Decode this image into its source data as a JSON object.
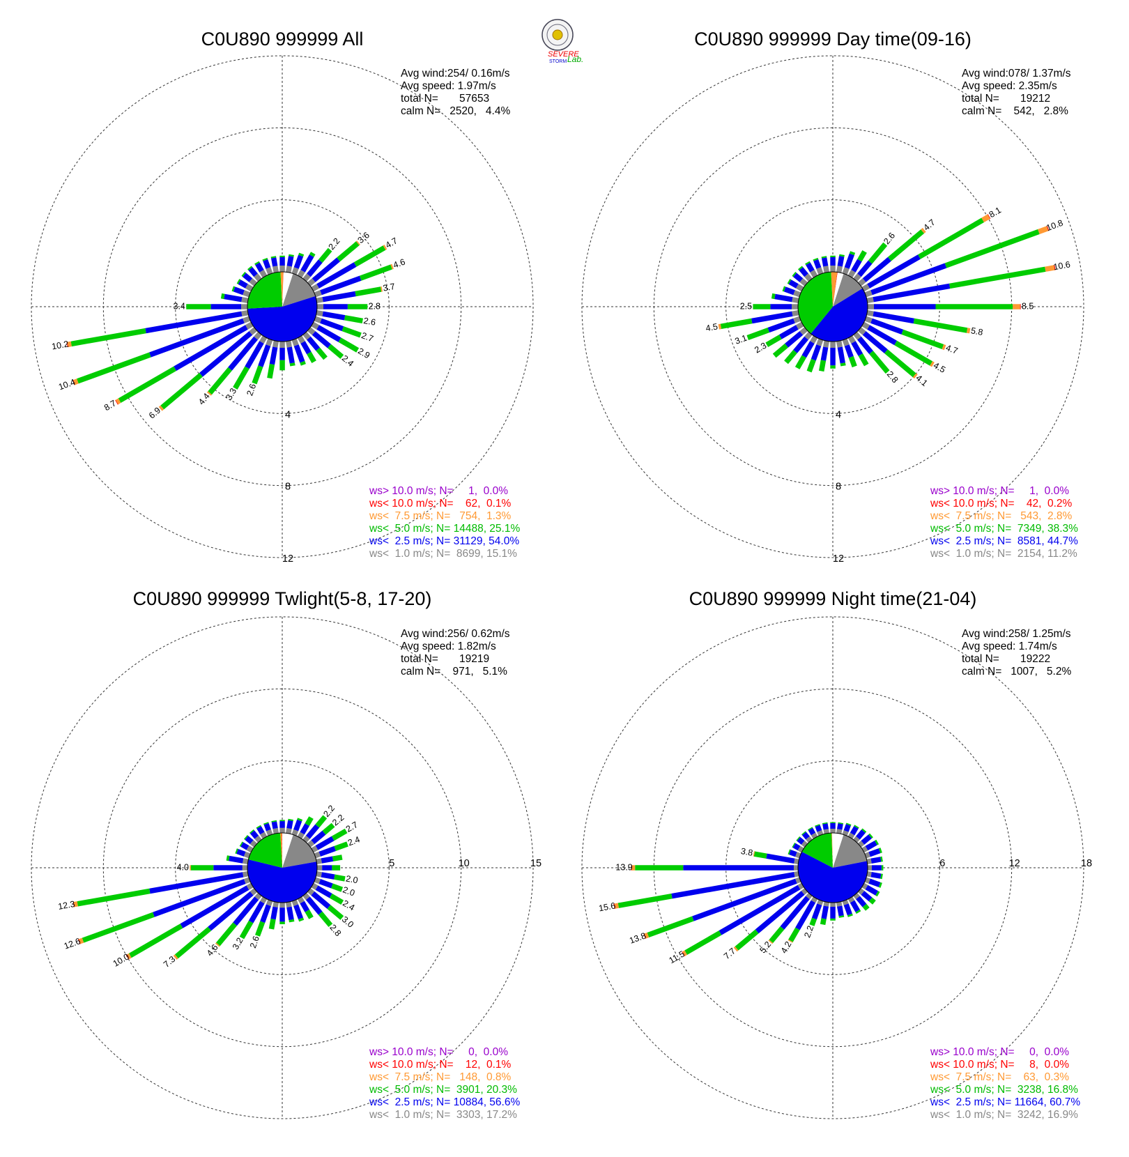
{
  "logo": {
    "text_top": "SEVERE",
    "text_bottom": "STORM",
    "text_lab": "Lab."
  },
  "colors": {
    "lt1": "#888888",
    "lt2p5": "#0000ee",
    "lt5": "#00cc00",
    "lt7p5": "#ff9933",
    "lt10": "#ff0000",
    "gt10": "#9900cc",
    "grid": "#333333"
  },
  "chart_data": [
    {
      "type": "wind_rose",
      "title": "C0U890 999999 All",
      "stats": {
        "avg_wind": "Avg wind:254/ 0.16m/s",
        "avg_speed": "Avg speed: 1.97m/s",
        "total": "total N=       57653",
        "calm": "calm N=   2520,   4.4%"
      },
      "rings": [
        4,
        8,
        12
      ],
      "ring_label_position": "south",
      "directions_deg": [
        0,
        10,
        20,
        30,
        40,
        50,
        60,
        70,
        80,
        90,
        100,
        110,
        120,
        130,
        140,
        150,
        160,
        170,
        180,
        190,
        200,
        210,
        220,
        230,
        240,
        250,
        260,
        270,
        280,
        290,
        300,
        310,
        320,
        330,
        340,
        350
      ],
      "totals": [
        0.9,
        1.0,
        1.2,
        1.5,
        2.2,
        3.6,
        4.7,
        4.6,
        3.7,
        2.8,
        2.6,
        2.7,
        2.9,
        2.4,
        1.8,
        1.6,
        1.5,
        1.4,
        1.6,
        2.1,
        2.6,
        3.3,
        4.4,
        6.9,
        8.7,
        10.4,
        10.2,
        3.4,
        1.5,
        1.0,
        0.9,
        0.9,
        0.9,
        0.9,
        0.9,
        0.9
      ],
      "bar_labels": [
        "",
        "",
        "",
        "",
        "2.2",
        "3.6",
        "4.7",
        "4.6",
        "3.7",
        "2.8",
        "2.6",
        "2.7",
        "2.9",
        "2.4",
        "",
        "",
        "",
        "",
        "",
        "",
        "2.6",
        "3.3",
        "4.4",
        "6.9",
        "8.7",
        "10.4",
        "10.2",
        "3.4",
        "",
        "",
        "",
        "",
        "",
        "",
        "",
        ""
      ],
      "pie": [
        {
          "class": "ws< 1.0",
          "percent": 15.1
        },
        {
          "class": "ws< 2.5",
          "percent": 54.0
        },
        {
          "class": "ws< 5.0",
          "percent": 25.1
        },
        {
          "class": "ws< 7.5",
          "percent": 1.3
        },
        {
          "class": "ws< 10.0",
          "percent": 0.1
        },
        {
          "class": "ws> 10.0",
          "percent": 0.0
        },
        {
          "class": "calm",
          "percent": 4.4
        }
      ],
      "legend": [
        {
          "text": "ws> 10.0 m/s; N=     1,  0.0%",
          "color": "#9900cc"
        },
        {
          "text": "ws< 10.0 m/s; N=    62,  0.1%",
          "color": "#ff0000"
        },
        {
          "text": "ws<  7.5 m/s; N=   754,  1.3%",
          "color": "#ff9933"
        },
        {
          "text": "ws<  5.0 m/s; N= 14488, 25.1%",
          "color": "#00bb00"
        },
        {
          "text": "ws<  2.5 m/s; N= 31129, 54.0%",
          "color": "#0000ee"
        },
        {
          "text": "ws<  1.0 m/s; N=  8699, 15.1%",
          "color": "#888888"
        }
      ]
    },
    {
      "type": "wind_rose",
      "title": "C0U890 999999 Day time(09-16)",
      "stats": {
        "avg_wind": "Avg wind:078/ 1.37m/s",
        "avg_speed": "Avg speed: 2.35m/s",
        "total": "total N=       19212",
        "calm": "calm N=    542,   2.8%"
      },
      "rings": [
        4,
        8,
        12
      ],
      "ring_label_position": "south",
      "directions_deg": [
        0,
        10,
        20,
        30,
        40,
        50,
        60,
        70,
        80,
        90,
        100,
        110,
        120,
        130,
        140,
        150,
        160,
        170,
        180,
        190,
        200,
        210,
        220,
        230,
        240,
        250,
        260,
        270,
        280,
        290,
        300,
        310,
        320,
        330,
        340,
        350
      ],
      "totals": [
        0.9,
        1.0,
        1.3,
        1.6,
        2.6,
        4.7,
        8.1,
        10.8,
        10.6,
        8.5,
        5.8,
        4.7,
        4.5,
        4.1,
        2.8,
        1.8,
        1.6,
        1.4,
        1.5,
        1.7,
        1.9,
        2.0,
        2.1,
        2.3,
        2.3,
        3.1,
        4.5,
        2.5,
        1.5,
        1.0,
        0.9,
        0.9,
        0.9,
        0.9,
        0.9,
        0.9
      ],
      "bar_labels": [
        "",
        "",
        "",
        "",
        "2.6",
        "4.7",
        "8.1",
        "10.8",
        "10.6",
        "8.5",
        "5.8",
        "4.7",
        "4.5",
        "4.1",
        "2.8",
        "",
        "",
        "",
        "",
        "",
        "",
        "",
        "",
        "",
        "2.3",
        "3.1",
        "4.5",
        "2.5",
        "",
        "",
        "",
        "",
        "",
        "",
        "",
        ""
      ],
      "pie": [
        {
          "class": "ws< 1.0",
          "percent": 11.2
        },
        {
          "class": "ws< 2.5",
          "percent": 44.7
        },
        {
          "class": "ws< 5.0",
          "percent": 38.3
        },
        {
          "class": "ws< 7.5",
          "percent": 2.8
        },
        {
          "class": "ws< 10.0",
          "percent": 0.2
        },
        {
          "class": "ws> 10.0",
          "percent": 0.0
        },
        {
          "class": "calm",
          "percent": 2.8
        }
      ],
      "legend": [
        {
          "text": "ws> 10.0 m/s; N=     1,  0.0%",
          "color": "#9900cc"
        },
        {
          "text": "ws< 10.0 m/s; N=    42,  0.2%",
          "color": "#ff0000"
        },
        {
          "text": "ws<  7.5 m/s; N=   543,  2.8%",
          "color": "#ff9933"
        },
        {
          "text": "ws<  5.0 m/s; N=  7349, 38.3%",
          "color": "#00bb00"
        },
        {
          "text": "ws<  2.5 m/s; N=  8581, 44.7%",
          "color": "#0000ee"
        },
        {
          "text": "ws<  1.0 m/s; N=  2154, 11.2%",
          "color": "#888888"
        }
      ]
    },
    {
      "type": "wind_rose",
      "title": "C0U890 999999 Twlight(5-8, 17-20)",
      "stats": {
        "avg_wind": "Avg wind:256/ 0.62m/s",
        "avg_speed": "Avg speed: 1.82m/s",
        "total": "total N=       19219",
        "calm": "calm N=    971,   5.1%"
      },
      "rings": [
        5,
        10,
        15
      ],
      "ring_label_position": "east",
      "directions_deg": [
        0,
        10,
        20,
        30,
        40,
        50,
        60,
        70,
        80,
        90,
        100,
        110,
        120,
        130,
        140,
        150,
        160,
        170,
        180,
        190,
        200,
        210,
        220,
        230,
        240,
        250,
        260,
        270,
        280,
        290,
        300,
        310,
        320,
        330,
        340,
        350
      ],
      "totals": [
        0.9,
        1.0,
        1.2,
        1.6,
        2.2,
        2.2,
        2.7,
        2.4,
        1.8,
        1.6,
        2.0,
        2.0,
        2.4,
        3.0,
        2.8,
        1.6,
        1.5,
        1.4,
        1.5,
        1.9,
        2.6,
        3.2,
        4.6,
        7.3,
        10.0,
        12.6,
        12.3,
        4.0,
        1.5,
        1.0,
        0.9,
        0.9,
        0.9,
        0.9,
        0.9,
        0.9
      ],
      "bar_labels": [
        "",
        "",
        "",
        "",
        "2.2",
        "2.2",
        "2.7",
        "2.4",
        "",
        "",
        "2.0",
        "2.0",
        "2.4",
        "3.0",
        "2.8",
        "",
        "",
        "",
        "",
        "",
        "2.6",
        "3.2",
        "4.6",
        "7.3",
        "10.0",
        "12.6",
        "12.3",
        "4.0",
        "",
        "",
        "",
        "",
        "",
        "",
        "",
        ""
      ],
      "pie": [
        {
          "class": "ws< 1.0",
          "percent": 17.2
        },
        {
          "class": "ws< 2.5",
          "percent": 56.6
        },
        {
          "class": "ws< 5.0",
          "percent": 20.3
        },
        {
          "class": "ws< 7.5",
          "percent": 0.8
        },
        {
          "class": "ws< 10.0",
          "percent": 0.1
        },
        {
          "class": "ws> 10.0",
          "percent": 0.0
        },
        {
          "class": "calm",
          "percent": 5.1
        }
      ],
      "legend": [
        {
          "text": "ws> 10.0 m/s; N=     0,  0.0%",
          "color": "#9900cc"
        },
        {
          "text": "ws< 10.0 m/s; N=    12,  0.1%",
          "color": "#ff0000"
        },
        {
          "text": "ws<  7.5 m/s; N=   148,  0.8%",
          "color": "#ff9933"
        },
        {
          "text": "ws<  5.0 m/s; N=  3901, 20.3%",
          "color": "#00bb00"
        },
        {
          "text": "ws<  2.5 m/s; N= 10884, 56.6%",
          "color": "#0000ee"
        },
        {
          "text": "ws<  1.0 m/s; N=  3303, 17.2%",
          "color": "#888888"
        }
      ]
    },
    {
      "type": "wind_rose",
      "title": "C0U890 999999 Night time(21-04)",
      "stats": {
        "avg_wind": "Avg wind:258/ 1.25m/s",
        "avg_speed": "Avg speed: 1.74m/s",
        "total": "total N=       19222",
        "calm": "calm N=   1007,   5.2%"
      },
      "rings": [
        6,
        12,
        18
      ],
      "ring_label_position": "east",
      "directions_deg": [
        0,
        10,
        20,
        30,
        40,
        50,
        60,
        70,
        80,
        90,
        100,
        110,
        120,
        130,
        140,
        150,
        160,
        170,
        180,
        190,
        200,
        210,
        220,
        230,
        240,
        250,
        260,
        270,
        280,
        290,
        300,
        310,
        320,
        330,
        340,
        350
      ],
      "totals": [
        0.9,
        0.9,
        1.0,
        1.1,
        1.2,
        1.3,
        1.4,
        1.4,
        1.3,
        1.3,
        1.3,
        1.4,
        1.5,
        1.6,
        1.6,
        1.4,
        1.4,
        1.3,
        1.5,
        1.9,
        2.2,
        4.2,
        5.2,
        7.7,
        11.5,
        13.8,
        15.6,
        13.9,
        3.8,
        1.0,
        0.9,
        0.9,
        0.9,
        0.9,
        0.9,
        0.9
      ],
      "bar_labels": [
        "",
        "",
        "",
        "",
        "",
        "",
        "",
        "",
        "",
        "",
        "",
        "",
        "",
        "",
        "",
        "",
        "",
        "",
        "",
        "",
        "2.2",
        "4.2",
        "5.2",
        "7.7",
        "11.5",
        "13.8",
        "15.6",
        "13.9",
        "3.8",
        "",
        "",
        "",
        "",
        "",
        "",
        ""
      ],
      "pie": [
        {
          "class": "ws< 1.0",
          "percent": 16.9
        },
        {
          "class": "ws< 2.5",
          "percent": 60.7
        },
        {
          "class": "ws< 5.0",
          "percent": 16.8
        },
        {
          "class": "ws< 7.5",
          "percent": 0.3
        },
        {
          "class": "ws< 10.0",
          "percent": 0.0
        },
        {
          "class": "ws> 10.0",
          "percent": 0.0
        },
        {
          "class": "calm",
          "percent": 5.2
        }
      ],
      "legend": [
        {
          "text": "ws> 10.0 m/s; N=     0,  0.0%",
          "color": "#9900cc"
        },
        {
          "text": "ws< 10.0 m/s; N=     8,  0.0%",
          "color": "#ff0000"
        },
        {
          "text": "ws<  7.5 m/s; N=    63,  0.3%",
          "color": "#ff9933"
        },
        {
          "text": "ws<  5.0 m/s; N=  3238, 16.8%",
          "color": "#00bb00"
        },
        {
          "text": "ws<  2.5 m/s; N= 11664, 60.7%",
          "color": "#0000ee"
        },
        {
          "text": "ws<  1.0 m/s; N=  3242, 16.9%",
          "color": "#888888"
        }
      ]
    }
  ]
}
